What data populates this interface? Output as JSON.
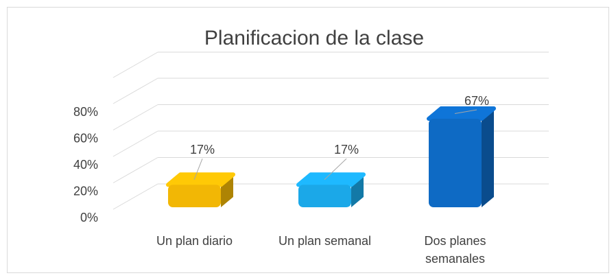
{
  "chart_data": {
    "type": "bar3d",
    "title": "Planificacion de la clase",
    "categories": [
      "Un plan diario",
      "Un plan semanal",
      "Dos planes semanales"
    ],
    "values": [
      17,
      17,
      67
    ],
    "value_labels": [
      "17%",
      "17%",
      "67%"
    ],
    "colors": [
      "#f2b705",
      "#1ba8e8",
      "#0e6ac4"
    ],
    "ylim": [
      0,
      80
    ],
    "yticks": [
      {
        "value": 0,
        "label": "0%"
      },
      {
        "value": 20,
        "label": "20%"
      },
      {
        "value": 40,
        "label": "40%"
      },
      {
        "value": 60,
        "label": "60%"
      },
      {
        "value": 80,
        "label": "80%"
      }
    ],
    "grid": true
  }
}
